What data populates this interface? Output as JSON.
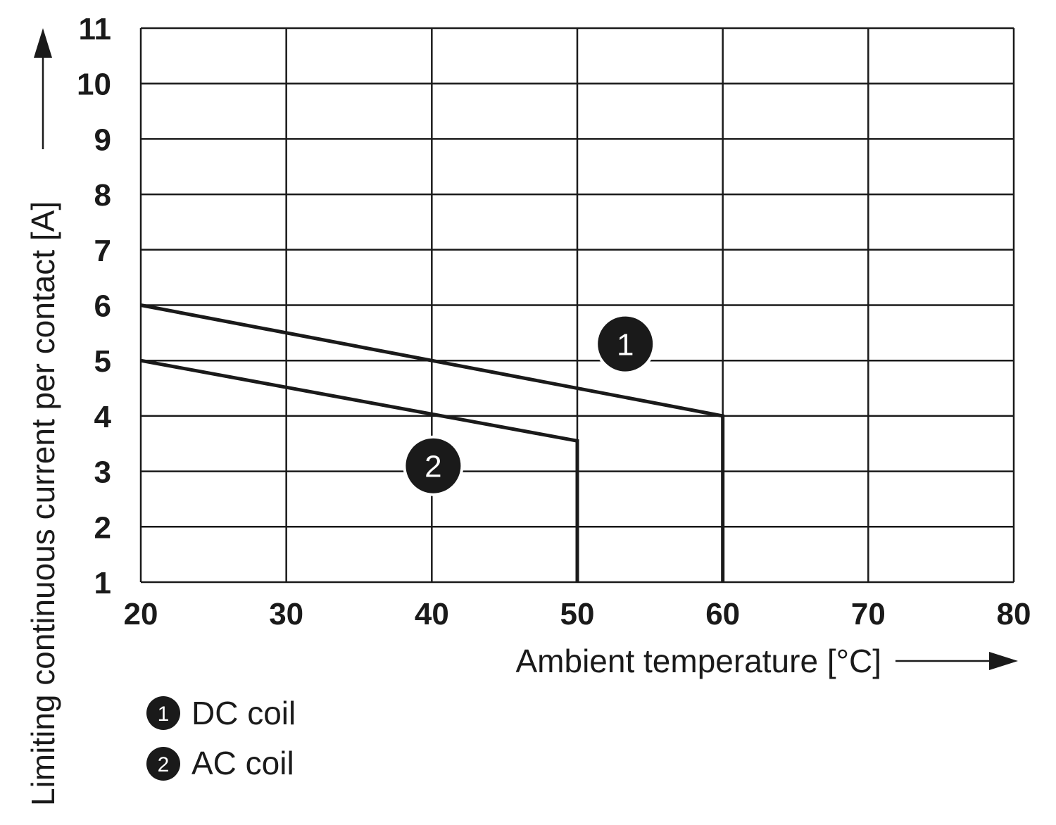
{
  "chart_data": {
    "type": "line",
    "xlabel": "Ambient temperature [°C]",
    "ylabel": "Limiting continuous current per contact [A]",
    "xlim": [
      20,
      80
    ],
    "ylim": [
      1,
      11
    ],
    "xticks": [
      "20",
      "30",
      "40",
      "50",
      "60",
      "70",
      "80"
    ],
    "yticks": [
      "1",
      "2",
      "3",
      "4",
      "5",
      "6",
      "7",
      "8",
      "9",
      "10",
      "11"
    ],
    "grid": true,
    "series": [
      {
        "id": "1",
        "name": "DC coil",
        "points": [
          {
            "x": 20,
            "y": 6
          },
          {
            "x": 60,
            "y": 4
          },
          {
            "x": 60,
            "y": 1
          }
        ],
        "marker_at": {
          "x": 53.3,
          "y": 5.3
        }
      },
      {
        "id": "2",
        "name": "AC coil",
        "points": [
          {
            "x": 20,
            "y": 5
          },
          {
            "x": 50,
            "y": 3.55
          },
          {
            "x": 50,
            "y": 1
          }
        ],
        "marker_at": {
          "x": 40.1,
          "y": 3.1
        }
      }
    ],
    "legend": [
      {
        "id": "1",
        "label": "DC coil"
      },
      {
        "id": "2",
        "label": "AC coil"
      }
    ],
    "legend_position": "bottom-left"
  },
  "colors": {
    "ink": "#1a1a1a",
    "background": "#ffffff"
  }
}
